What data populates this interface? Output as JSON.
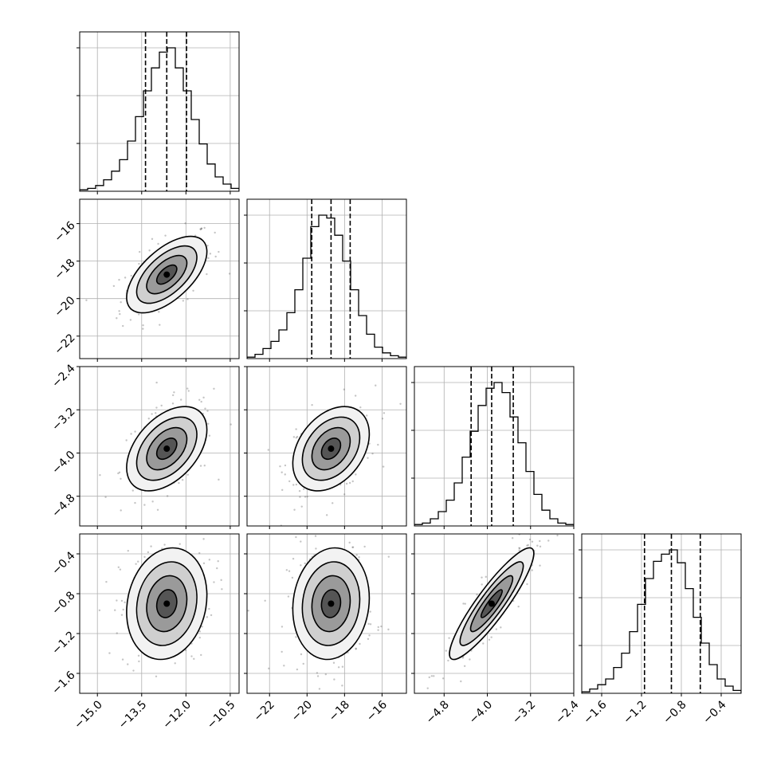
{
  "chart_data": {
    "type": "corner",
    "parameters": [
      {
        "range": [
          -15.6,
          -10.2
        ],
        "ticks": [
          -15.0,
          -13.5,
          -12.0,
          -10.5
        ],
        "tick_labels": [
          "−15.0",
          "−13.5",
          "−12.0",
          "−10.5"
        ],
        "quantiles": [
          -13.37,
          -12.65,
          -11.98
        ],
        "mean": -12.65,
        "sd": 0.68
      },
      {
        "range": [
          -23.2,
          -14.7
        ],
        "ticks": [
          -22,
          -20,
          -18,
          -16
        ],
        "tick_labels": [
          "−22",
          "−20",
          "−18",
          "−16"
        ],
        "quantiles": [
          -19.75,
          -18.72,
          -17.7
        ],
        "mean": -18.72,
        "sd": 1.02
      },
      {
        "range": [
          -5.35,
          -2.4
        ],
        "ticks": [
          -4.8,
          -4.0,
          -3.2,
          -2.4
        ],
        "tick_labels": [
          "−4.8",
          "−4.0",
          "−3.2",
          "−2.4"
        ],
        "quantiles": [
          -4.3,
          -3.92,
          -3.52
        ],
        "mean": -3.92,
        "sd": 0.39
      },
      {
        "range": [
          -1.8,
          -0.2
        ],
        "ticks": [
          -1.6,
          -1.2,
          -0.8,
          -0.4
        ],
        "tick_labels": [
          "−1.6",
          "−1.2",
          "−0.8",
          "−0.4"
        ],
        "quantiles": [
          -1.17,
          -0.9,
          -0.61
        ],
        "mean": -0.9,
        "sd": 0.28
      }
    ],
    "correlations": [
      [
        1,
        0.6,
        0.45,
        0.15
      ],
      [
        0.6,
        1,
        0.35,
        0.1
      ],
      [
        0.45,
        0.35,
        1,
        0.9
      ],
      [
        0.15,
        0.1,
        0.9,
        1
      ]
    ],
    "histogram_bins": 20,
    "histograms": [
      [
        1,
        2,
        4,
        8,
        14,
        22,
        35,
        52,
        70,
        86,
        97,
        100,
        86,
        70,
        50,
        33,
        19,
        10,
        5,
        2
      ],
      [
        1,
        3,
        7,
        12,
        20,
        32,
        48,
        70,
        92,
        100,
        98,
        86,
        68,
        48,
        30,
        17,
        8,
        4,
        2,
        1
      ],
      [
        1,
        2,
        5,
        10,
        18,
        30,
        48,
        66,
        84,
        96,
        100,
        93,
        76,
        58,
        38,
        22,
        11,
        5,
        2,
        1
      ],
      [
        1,
        3,
        6,
        10,
        18,
        28,
        43,
        62,
        80,
        92,
        97,
        100,
        91,
        73,
        53,
        35,
        20,
        10,
        5,
        2
      ]
    ],
    "contour_levels": [
      "0.5 sigma",
      "1.0 sigma",
      "1.5 sigma",
      "2.0 sigma"
    ],
    "scatter_points_per_panel": 220,
    "grid": true,
    "quantile_lines": "dashed",
    "title": "",
    "xlabel": "",
    "ylabel": ""
  }
}
